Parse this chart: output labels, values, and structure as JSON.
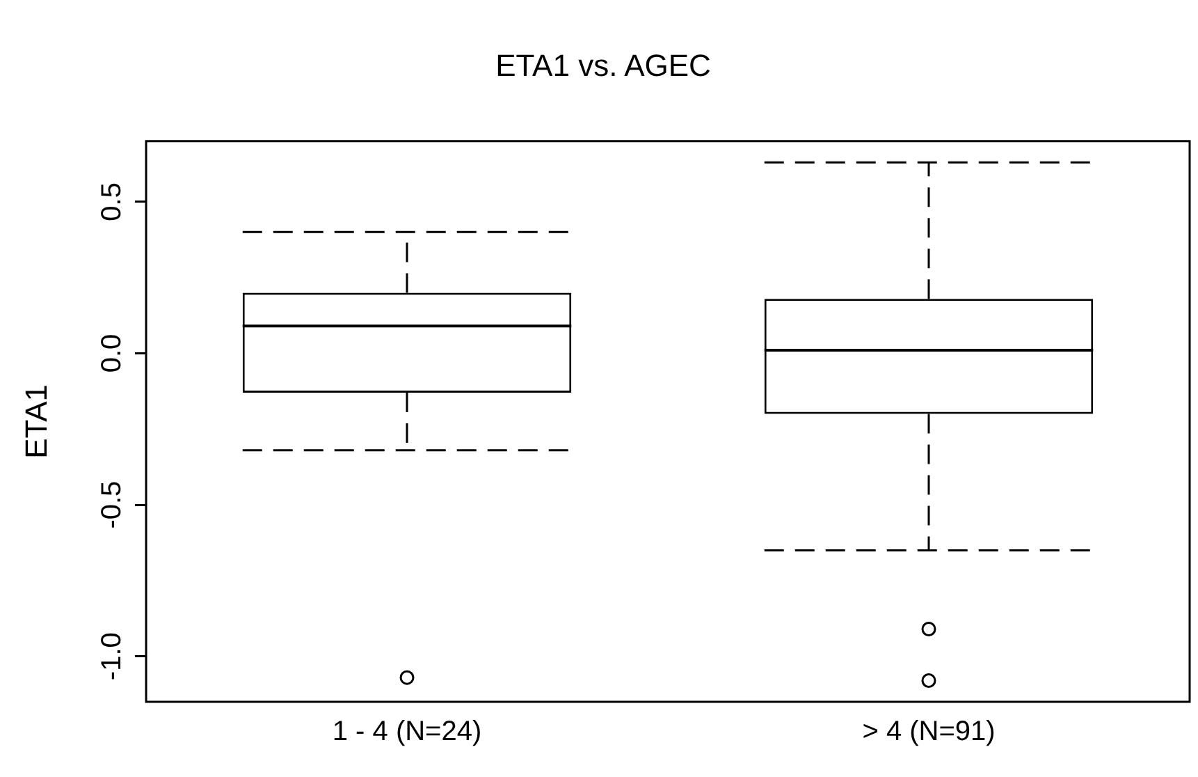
{
  "chart_data": {
    "type": "box",
    "title": "ETA1 vs. AGEC",
    "ylabel": "ETA1",
    "categories": [
      "1 - 4 (N=24)",
      "> 4 (N=91)"
    ],
    "boxes": [
      {
        "low": -0.32,
        "q1": -0.13,
        "median": 0.09,
        "q3": 0.2,
        "high": 0.4,
        "outliers": [
          -1.07
        ]
      },
      {
        "low": -0.65,
        "q1": -0.2,
        "median": 0.01,
        "q3": 0.18,
        "high": 0.63,
        "outliers": [
          -0.91,
          -1.08
        ]
      }
    ],
    "color": "#000000",
    "ylim": [
      -1.15,
      0.7
    ],
    "yticks": [
      {
        "value": -1,
        "label": "-1.0"
      },
      {
        "value": -0.5,
        "label": "-0.5"
      },
      {
        "value": 0,
        "label": "0.0"
      },
      0.5
    ],
    "grid": false,
    "legend": false
  }
}
